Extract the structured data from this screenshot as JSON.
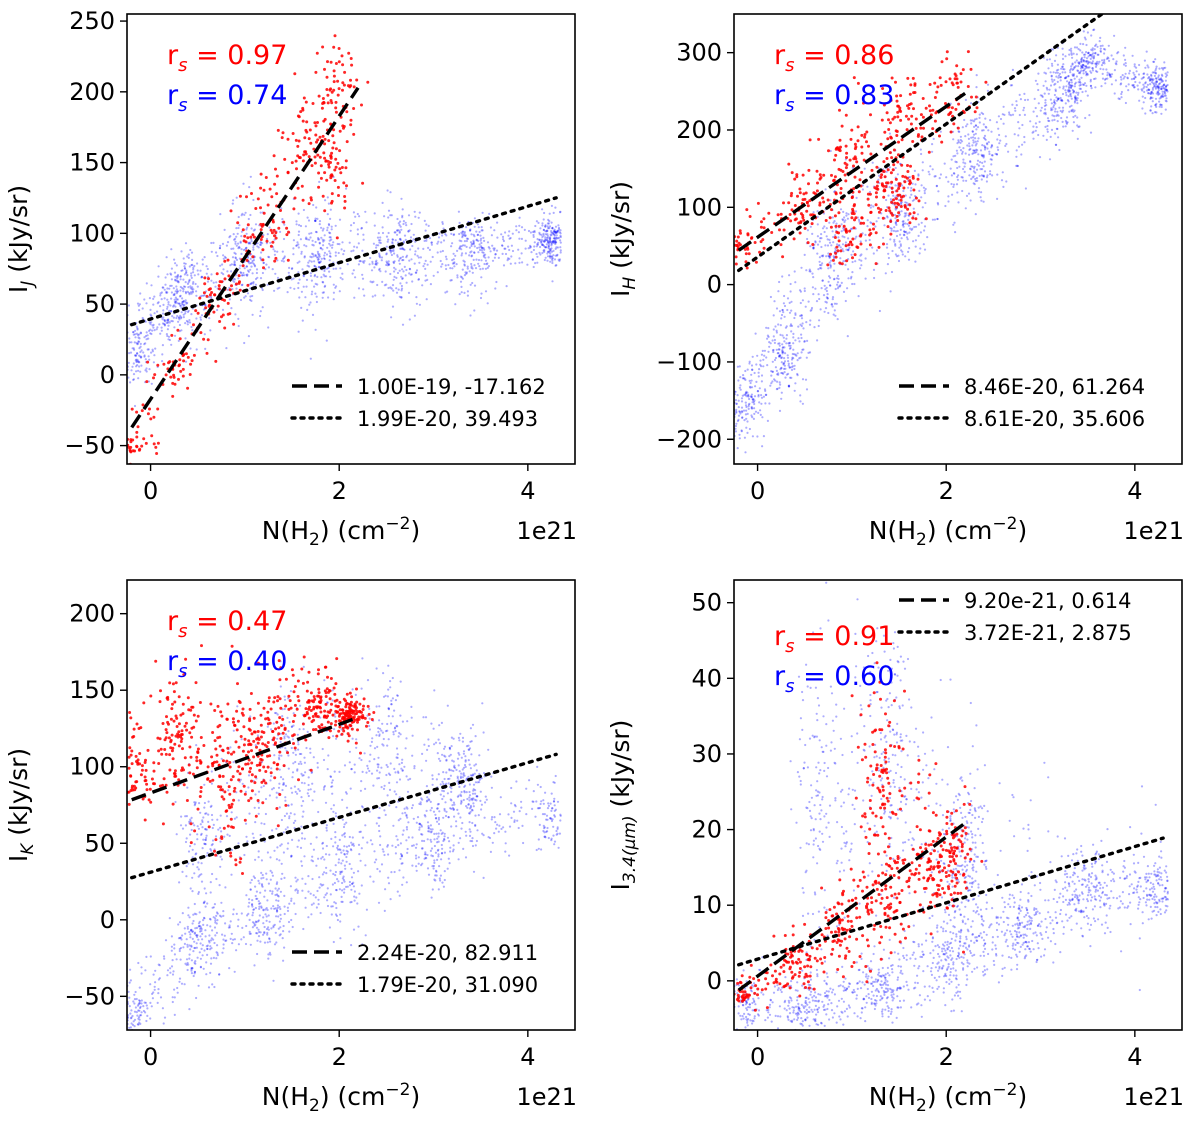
{
  "chart_data": [
    {
      "type": "scatter",
      "ylabel": "I",
      "ylabel_sub": "J",
      "ylabel_unit": " (kJy/sr)",
      "xlabel_pre": "N(H",
      "xlabel_sub": "2",
      "xlabel_post": ") (cm",
      "xlabel_sup": "−2",
      "xlabel_end": ")",
      "x_offset_label": "1e21",
      "xlim": [
        -0.25,
        4.5
      ],
      "ylim": [
        -63,
        255
      ],
      "xticks": [
        0,
        2,
        4
      ],
      "yticks": [
        -50,
        0,
        50,
        100,
        150,
        200,
        250
      ],
      "xtick_labels": [
        "0",
        "2",
        "4"
      ],
      "ytick_labels": [
        "−50",
        "0",
        "50",
        "100",
        "150",
        "200",
        "250"
      ],
      "correlations": [
        {
          "prefix": "r",
          "sub": "s",
          "value": " = 0.97",
          "color": "#ff0000"
        },
        {
          "prefix": "r",
          "sub": "s",
          "value": " = 0.74",
          "color": "#0000ff"
        }
      ],
      "legend": [
        {
          "style": "dashed",
          "label": "1.00E-19, -17.162"
        },
        {
          "style": "dotted",
          "label": "1.99E-20, 39.493"
        }
      ],
      "legend_position": "lower-right",
      "fits": [
        {
          "style": "dashed",
          "color": "#000000",
          "x": [
            -0.2,
            2.2
          ],
          "slope": 100.0,
          "intercept": -17.162
        },
        {
          "style": "dotted",
          "color": "#000000",
          "x": [
            -0.2,
            4.3
          ],
          "slope": 19.9,
          "intercept": 39.493
        }
      ],
      "scatter_clouds": [
        {
          "series": "red",
          "color": "#ff0000",
          "n": 420,
          "seed": 11,
          "shape": [
            [
              -0.2,
              -50,
              8
            ],
            [
              0.3,
              5,
              12
            ],
            [
              0.7,
              55,
              15
            ],
            [
              1.2,
              105,
              20
            ],
            [
              1.7,
              170,
              25
            ],
            [
              2.0,
              210,
              20
            ],
            [
              1.9,
              150,
              25
            ]
          ]
        },
        {
          "series": "blue",
          "color": "#0000ff",
          "n": 1900,
          "seed": 23,
          "shape": [
            [
              -0.2,
              15,
              20
            ],
            [
              0.3,
              55,
              20
            ],
            [
              1.0,
              80,
              30
            ],
            [
              1.8,
              85,
              30
            ],
            [
              2.6,
              85,
              25
            ],
            [
              3.4,
              85,
              20
            ],
            [
              4.3,
              95,
              12
            ]
          ]
        }
      ]
    },
    {
      "type": "scatter",
      "ylabel": "I",
      "ylabel_sub": "H",
      "ylabel_unit": " (kJy/sr)",
      "xlabel_pre": "N(H",
      "xlabel_sub": "2",
      "xlabel_post": ") (cm",
      "xlabel_sup": "−2",
      "xlabel_end": ")",
      "x_offset_label": "1e21",
      "xlim": [
        -0.25,
        4.5
      ],
      "ylim": [
        -232,
        350
      ],
      "xticks": [
        0,
        2,
        4
      ],
      "yticks": [
        -200,
        -100,
        0,
        100,
        200,
        300
      ],
      "xtick_labels": [
        "0",
        "2",
        "4"
      ],
      "ytick_labels": [
        "−200",
        "−100",
        "0",
        "100",
        "200",
        "300"
      ],
      "correlations": [
        {
          "prefix": "r",
          "sub": "s",
          "value": " = 0.86",
          "color": "#ff0000"
        },
        {
          "prefix": "r",
          "sub": "s",
          "value": " = 0.83",
          "color": "#0000ff"
        }
      ],
      "legend": [
        {
          "style": "dashed",
          "label": "8.46E-20, 61.264"
        },
        {
          "style": "dotted",
          "label": "8.61E-20, 35.606"
        }
      ],
      "legend_position": "lower-right",
      "fits": [
        {
          "style": "dashed",
          "color": "#000000",
          "x": [
            -0.2,
            2.2
          ],
          "slope": 84.6,
          "intercept": 61.264
        },
        {
          "style": "dotted",
          "color": "#000000",
          "x": [
            -0.2,
            4.3
          ],
          "slope": 86.1,
          "intercept": 35.606
        }
      ],
      "scatter_clouds": [
        {
          "series": "red",
          "color": "#ff0000",
          "n": 520,
          "seed": 37,
          "shape": [
            [
              -0.2,
              50,
              20
            ],
            [
              0.5,
              110,
              35
            ],
            [
              1.0,
              165,
              45
            ],
            [
              1.5,
              210,
              55
            ],
            [
              2.1,
              250,
              35
            ],
            [
              0.9,
              60,
              25
            ],
            [
              1.5,
              120,
              30
            ]
          ]
        },
        {
          "series": "blue",
          "color": "#0000ff",
          "n": 2000,
          "seed": 41,
          "shape": [
            [
              -0.2,
              -160,
              30
            ],
            [
              0.3,
              -80,
              50
            ],
            [
              0.8,
              40,
              60
            ],
            [
              1.5,
              90,
              50
            ],
            [
              2.3,
              170,
              50
            ],
            [
              3.2,
              240,
              40
            ],
            [
              3.5,
              290,
              20
            ],
            [
              4.3,
              255,
              20
            ]
          ]
        }
      ]
    },
    {
      "type": "scatter",
      "ylabel": "I",
      "ylabel_sub": "K",
      "ylabel_unit": " (kJy/sr)",
      "xlabel_pre": "N(H",
      "xlabel_sub": "2",
      "xlabel_post": ") (cm",
      "xlabel_sup": "−2",
      "xlabel_end": ")",
      "x_offset_label": "1e21",
      "xlim": [
        -0.25,
        4.5
      ],
      "ylim": [
        -72,
        222
      ],
      "xticks": [
        0,
        2,
        4
      ],
      "yticks": [
        -50,
        0,
        50,
        100,
        150,
        200
      ],
      "xtick_labels": [
        "0",
        "2",
        "4"
      ],
      "ytick_labels": [
        "−50",
        "0",
        "50",
        "100",
        "150",
        "200"
      ],
      "correlations": [
        {
          "prefix": "r",
          "sub": "s",
          "value": " = 0.47",
          "color": "#ff0000"
        },
        {
          "prefix": "r",
          "sub": "s",
          "value": " = 0.40",
          "color": "#0000ff"
        }
      ],
      "legend": [
        {
          "style": "dashed",
          "label": "2.24E-20, 82.911"
        },
        {
          "style": "dotted",
          "label": "1.79E-20, 31.090"
        }
      ],
      "legend_position": "lower-right",
      "fits": [
        {
          "style": "dashed",
          "color": "#000000",
          "x": [
            -0.2,
            2.2
          ],
          "slope": 22.4,
          "intercept": 82.911
        },
        {
          "style": "dotted",
          "color": "#000000",
          "x": [
            -0.2,
            4.3
          ],
          "slope": 17.9,
          "intercept": 31.09
        }
      ],
      "scatter_clouds": [
        {
          "series": "red",
          "color": "#ff0000",
          "n": 700,
          "seed": 53,
          "shape": [
            [
              -0.2,
              95,
              20
            ],
            [
              0.3,
              120,
              30
            ],
            [
              0.8,
              95,
              40
            ],
            [
              1.2,
              110,
              35
            ],
            [
              1.7,
              140,
              18
            ],
            [
              2.1,
              135,
              10
            ]
          ]
        },
        {
          "series": "blue",
          "color": "#0000ff",
          "n": 2000,
          "seed": 59,
          "shape": [
            [
              -0.2,
              -60,
              15
            ],
            [
              0.5,
              -15,
              20
            ],
            [
              1.2,
              5,
              20
            ],
            [
              2.0,
              30,
              25
            ],
            [
              3.0,
              50,
              25
            ],
            [
              4.3,
              70,
              15
            ],
            [
              0.5,
              60,
              30
            ],
            [
              1.5,
              100,
              40
            ],
            [
              2.5,
              110,
              40
            ],
            [
              3.3,
              90,
              25
            ]
          ]
        }
      ]
    },
    {
      "type": "scatter",
      "ylabel": "I",
      "ylabel_sub": "3.4(μm)",
      "ylabel_unit": " (kJy/sr)",
      "xlabel_pre": "N(H",
      "xlabel_sub": "2",
      "xlabel_post": ") (cm",
      "xlabel_sup": "−2",
      "xlabel_end": ")",
      "x_offset_label": "1e21",
      "xlim": [
        -0.25,
        4.5
      ],
      "ylim": [
        -6.5,
        53
      ],
      "xticks": [
        0,
        2,
        4
      ],
      "yticks": [
        0,
        10,
        20,
        30,
        40,
        50
      ],
      "xtick_labels": [
        "0",
        "2",
        "4"
      ],
      "ytick_labels": [
        "0",
        "10",
        "20",
        "30",
        "40",
        "50"
      ],
      "correlations": [
        {
          "prefix": "r",
          "sub": "s",
          "value": " = 0.91",
          "color": "#ff0000"
        },
        {
          "prefix": "r",
          "sub": "s",
          "value": " = 0.60",
          "color": "#0000ff"
        }
      ],
      "legend": [
        {
          "style": "dashed",
          "label": "9.20e-21, 0.614"
        },
        {
          "style": "dotted",
          "label": "3.72E-21, 2.875"
        }
      ],
      "legend_position": "upper-right",
      "fits": [
        {
          "style": "dashed",
          "color": "#000000",
          "x": [
            -0.2,
            2.2
          ],
          "slope": 9.2,
          "intercept": 0.614
        },
        {
          "style": "dotted",
          "color": "#000000",
          "x": [
            -0.2,
            4.3
          ],
          "slope": 3.72,
          "intercept": 2.875
        }
      ],
      "scatter_clouds": [
        {
          "series": "red",
          "color": "#ff0000",
          "n": 600,
          "seed": 71,
          "shape": [
            [
              -0.2,
              -2,
              2
            ],
            [
              0.4,
              2,
              3
            ],
            [
              0.9,
              7,
              4
            ],
            [
              1.4,
              11,
              5
            ],
            [
              1.9,
              15,
              5
            ],
            [
              2.1,
              17,
              3
            ],
            [
              1.3,
              25,
              10
            ]
          ]
        },
        {
          "series": "blue",
          "color": "#0000ff",
          "n": 2000,
          "seed": 83,
          "shape": [
            [
              -0.2,
              -3,
              3
            ],
            [
              0.5,
              -3,
              3
            ],
            [
              1.3,
              -1,
              3
            ],
            [
              2.0,
              3,
              4
            ],
            [
              2.8,
              7,
              4
            ],
            [
              3.5,
              12,
              4
            ],
            [
              4.3,
              12,
              3
            ],
            [
              0.6,
              25,
              15
            ],
            [
              1.4,
              30,
              15
            ],
            [
              2.2,
              15,
              10
            ]
          ]
        }
      ]
    }
  ]
}
